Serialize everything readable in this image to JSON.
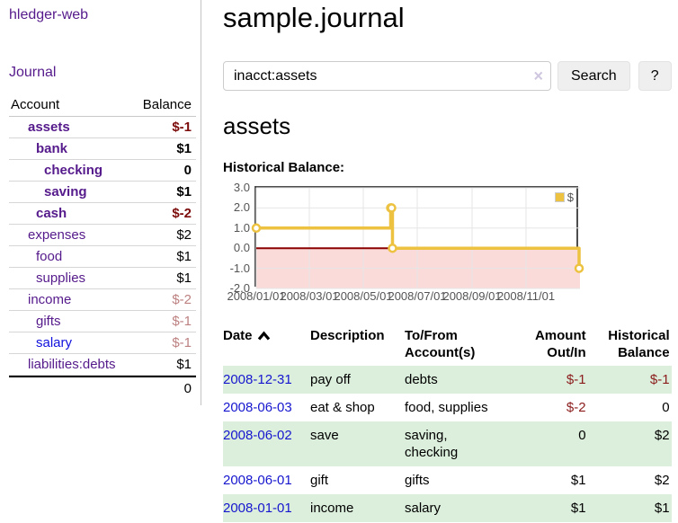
{
  "app": {
    "title": "hledger-web"
  },
  "sidebar": {
    "journal_link": "Journal",
    "accounts_table": {
      "headers": [
        "Account",
        "Balance"
      ],
      "rows": [
        {
          "name": "assets",
          "indent": 0,
          "bold": true,
          "balance": "$-1",
          "negative": true
        },
        {
          "name": "bank",
          "indent": 1,
          "bold": true,
          "balance": "$1",
          "negative": false
        },
        {
          "name": "checking",
          "indent": 2,
          "bold": true,
          "balance": "0",
          "negative": false
        },
        {
          "name": "saving",
          "indent": 2,
          "bold": true,
          "balance": "$1",
          "negative": false
        },
        {
          "name": "cash",
          "indent": 1,
          "bold": true,
          "balance": "$-2",
          "negative": true
        },
        {
          "name": "expenses",
          "indent": 0,
          "bold": false,
          "balance": "$2",
          "negative": false
        },
        {
          "name": "food",
          "indent": 1,
          "bold": false,
          "balance": "$1",
          "negative": false
        },
        {
          "name": "supplies",
          "indent": 1,
          "bold": false,
          "balance": "$1",
          "negative": false
        },
        {
          "name": "income",
          "indent": 0,
          "bold": false,
          "balance": "$-2",
          "negative": true
        },
        {
          "name": "gifts",
          "indent": 1,
          "bold": false,
          "balance": "$-1",
          "negative": true
        },
        {
          "name": "salary",
          "indent": 1,
          "bold": false,
          "balance": "$-1",
          "negative": true,
          "unvisited": true
        },
        {
          "name": "liabilities:debts",
          "indent": 0,
          "bold": false,
          "balance": "$1",
          "negative": false
        }
      ],
      "total": "0"
    }
  },
  "main": {
    "title": "sample.journal",
    "search": {
      "value": "inacct:assets",
      "clear_icon": "×",
      "search_button": "Search",
      "help_button": "?"
    },
    "account_heading": "assets",
    "chart_label": "Historical Balance:"
  },
  "chart_data": {
    "type": "line",
    "step": true,
    "title": "Historical Balance",
    "series": [
      {
        "name": "$",
        "color": "#edc240",
        "points": [
          [
            "2008-01-01",
            1
          ],
          [
            "2008-06-01",
            2
          ],
          [
            "2008-06-02",
            2
          ],
          [
            "2008-06-03",
            0
          ],
          [
            "2008-12-31",
            -1
          ]
        ]
      }
    ],
    "xlim": [
      "2008-01-01",
      "2009-01-01"
    ],
    "ylim": [
      -2,
      3
    ],
    "yticks": [
      3,
      2,
      1,
      0,
      -1,
      -2
    ],
    "xticks": [
      "2008/01/01",
      "2008/03/01",
      "2008/05/01",
      "2008/07/01",
      "2008/09/01",
      "2008/11/01"
    ],
    "legend_position": "top-right",
    "grid": true,
    "grid_color": "#e6e6e6",
    "negative_region_fill": "#fbdada",
    "zero_line_color": "#8b0000"
  },
  "register": {
    "headers": [
      "Date",
      "Description",
      "To/From Account(s)",
      "Amount Out/In",
      "Historical Balance"
    ],
    "rows": [
      {
        "date": "2008-12-31",
        "description": "pay off",
        "accounts": "debts",
        "amount": "$-1",
        "amount_negative": true,
        "balance": "$-1",
        "balance_negative": true,
        "highlight": true
      },
      {
        "date": "2008-06-03",
        "description": "eat & shop",
        "accounts": "food, supplies",
        "amount": "$-2",
        "amount_negative": true,
        "balance": "0",
        "balance_negative": false,
        "highlight": false
      },
      {
        "date": "2008-06-02",
        "description": "save",
        "accounts": "saving, checking",
        "amount": "0",
        "amount_negative": false,
        "balance": "$2",
        "balance_negative": false,
        "highlight": true
      },
      {
        "date": "2008-06-01",
        "description": "gift",
        "accounts": "gifts",
        "amount": "$1",
        "amount_negative": false,
        "balance": "$2",
        "balance_negative": false,
        "highlight": false
      },
      {
        "date": "2008-01-01",
        "description": "income",
        "accounts": "salary",
        "amount": "$1",
        "amount_negative": false,
        "balance": "$1",
        "balance_negative": false,
        "highlight": true
      }
    ]
  }
}
